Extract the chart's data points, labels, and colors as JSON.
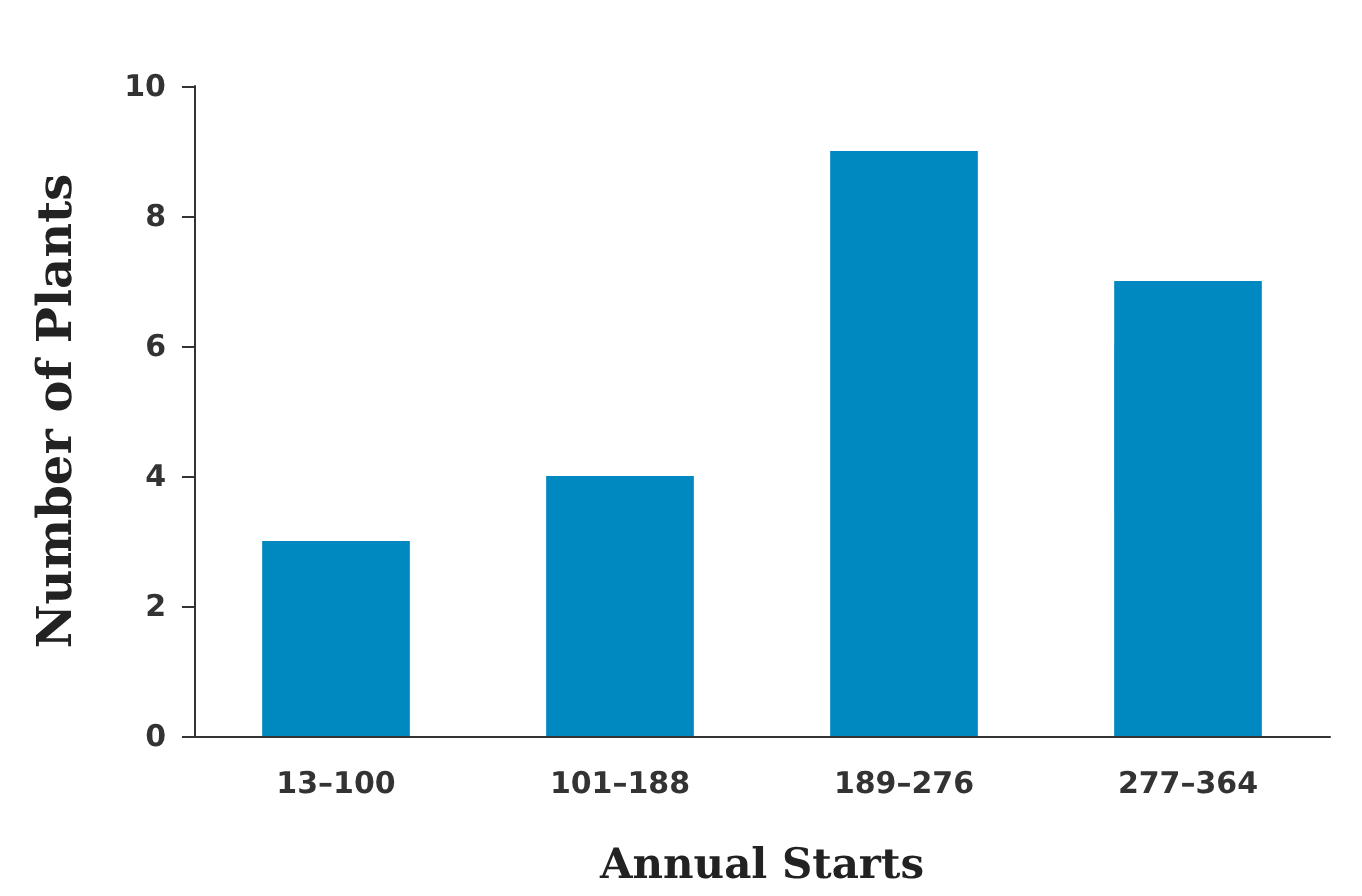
{
  "chart_data": {
    "type": "bar",
    "xlabel": "Annual Starts",
    "ylabel": "Number of Plants",
    "categories": [
      "13–100",
      "101–188",
      "189–276",
      "277–364"
    ],
    "values": [
      3,
      4,
      9,
      7
    ],
    "color": "#0088c0",
    "ylim": [
      0,
      10
    ],
    "yticks": [
      0,
      2,
      4,
      6,
      8,
      10
    ],
    "grid": false
  }
}
